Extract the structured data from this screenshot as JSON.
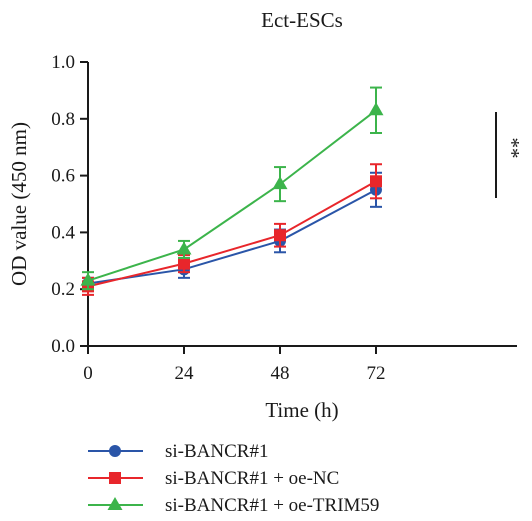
{
  "chart_data": {
    "type": "line",
    "title": "Ect-ESCs",
    "xlabel": "Time (h)",
    "ylabel": "OD value (450 nm)",
    "x": [
      0,
      24,
      48,
      72
    ],
    "xticks": [
      "0",
      "24",
      "48",
      "72"
    ],
    "xlim": [
      0,
      78
    ],
    "ylim": [
      0.0,
      1.0
    ],
    "yticks": [
      "0.0",
      "0.2",
      "0.4",
      "0.6",
      "0.8",
      "1.0"
    ],
    "grid": false,
    "legend_position": "bottom",
    "series": [
      {
        "name": "si-BANCR#1",
        "color": "#2a55a8",
        "marker": "circle",
        "values": [
          0.22,
          0.27,
          0.37,
          0.55
        ],
        "errors": [
          0.02,
          0.03,
          0.04,
          0.06
        ]
      },
      {
        "name": "si-BANCR#1 + oe-NC",
        "color": "#e8262b",
        "marker": "square",
        "values": [
          0.21,
          0.29,
          0.39,
          0.58
        ],
        "errors": [
          0.03,
          0.03,
          0.04,
          0.06
        ]
      },
      {
        "name": "si-BANCR#1 + oe-TRIM59",
        "color": "#3cb44b",
        "marker": "triangle",
        "values": [
          0.23,
          0.34,
          0.57,
          0.83
        ],
        "errors": [
          0.03,
          0.03,
          0.06,
          0.08
        ]
      }
    ],
    "annotation": "**"
  }
}
